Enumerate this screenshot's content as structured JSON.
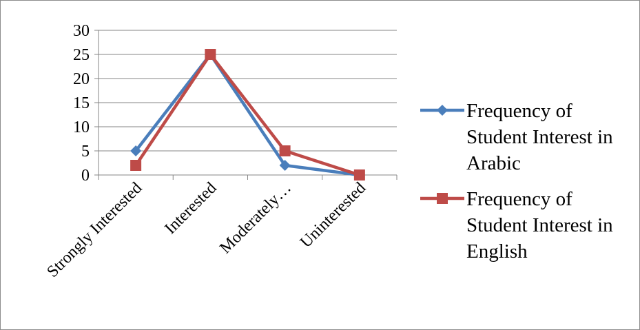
{
  "chart_data": {
    "type": "line",
    "categories": [
      "Strongly Interested",
      "Interested",
      "Moderately…",
      "Uninterested"
    ],
    "series": [
      {
        "name": "Frequency of Student Interest in Arabic",
        "name_lines": [
          "Frequency of",
          "Student Interest in",
          "Arabic"
        ],
        "values": [
          5,
          25,
          2,
          0
        ],
        "color": "#4a7ebb",
        "marker": "diamond"
      },
      {
        "name": "Frequency of Student Interest in English",
        "name_lines": [
          "Frequency of",
          "Student Interest in",
          "English"
        ],
        "values": [
          2,
          25,
          5,
          0
        ],
        "color": "#be4b48",
        "marker": "square"
      }
    ],
    "ylim": [
      0,
      30
    ],
    "yticks": [
      0,
      5,
      10,
      15,
      20,
      25,
      30
    ],
    "title": "",
    "xlabel": "",
    "ylabel": "",
    "grid": true,
    "legend_position": "right"
  }
}
